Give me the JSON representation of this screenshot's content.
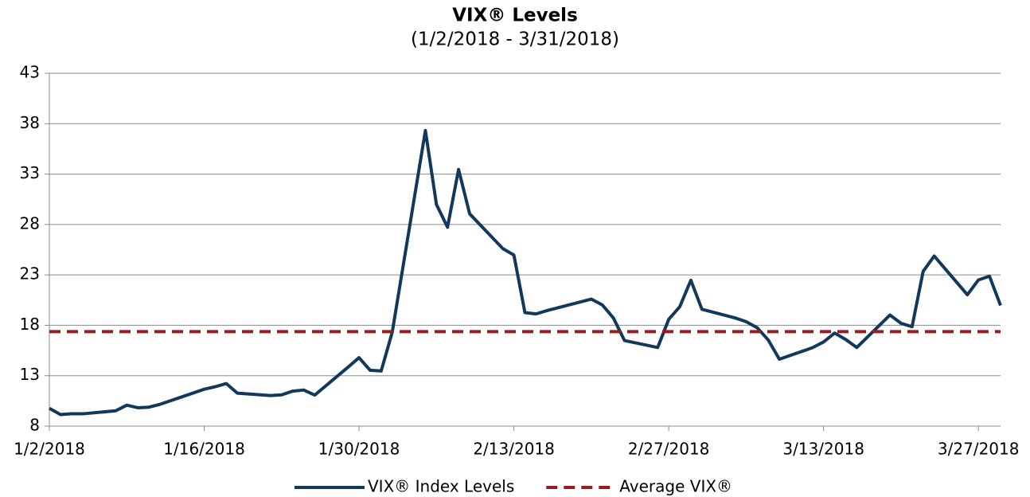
{
  "chart_data": {
    "type": "line",
    "title": "VIX® Levels",
    "subtitle": "(1/2/2018 - 3/31/2018)",
    "x": [
      "2018-01-02",
      "2018-01-03",
      "2018-01-04",
      "2018-01-05",
      "2018-01-08",
      "2018-01-09",
      "2018-01-10",
      "2018-01-11",
      "2018-01-12",
      "2018-01-16",
      "2018-01-17",
      "2018-01-18",
      "2018-01-19",
      "2018-01-22",
      "2018-01-23",
      "2018-01-24",
      "2018-01-25",
      "2018-01-26",
      "2018-01-29",
      "2018-01-30",
      "2018-01-31",
      "2018-02-01",
      "2018-02-02",
      "2018-02-05",
      "2018-02-06",
      "2018-02-07",
      "2018-02-08",
      "2018-02-09",
      "2018-02-12",
      "2018-02-13",
      "2018-02-14",
      "2018-02-15",
      "2018-02-16",
      "2018-02-20",
      "2018-02-21",
      "2018-02-22",
      "2018-02-23",
      "2018-02-26",
      "2018-02-27",
      "2018-02-28",
      "2018-03-01",
      "2018-03-02",
      "2018-03-05",
      "2018-03-06",
      "2018-03-07",
      "2018-03-08",
      "2018-03-09",
      "2018-03-12",
      "2018-03-13",
      "2018-03-14",
      "2018-03-15",
      "2018-03-16",
      "2018-03-19",
      "2018-03-20",
      "2018-03-21",
      "2018-03-22",
      "2018-03-23",
      "2018-03-26",
      "2018-03-27",
      "2018-03-28",
      "2018-03-29"
    ],
    "series": [
      {
        "name": "VIX® Index Levels",
        "color": "#12395b",
        "values": [
          9.77,
          9.15,
          9.22,
          9.22,
          9.52,
          10.08,
          9.82,
          9.88,
          10.16,
          11.66,
          11.91,
          12.22,
          11.27,
          11.03,
          11.1,
          11.47,
          11.58,
          11.08,
          13.84,
          14.79,
          13.54,
          13.47,
          17.31,
          37.32,
          29.98,
          27.73,
          33.46,
          29.06,
          25.61,
          24.97,
          19.26,
          19.13,
          19.46,
          20.6,
          20.02,
          18.72,
          16.49,
          15.8,
          18.59,
          19.85,
          22.47,
          19.59,
          18.73,
          18.36,
          17.76,
          16.54,
          14.64,
          15.78,
          16.35,
          17.23,
          16.59,
          15.8,
          19.02,
          18.2,
          17.86,
          23.34,
          24.87,
          21.03,
          22.5,
          22.87,
          19.97
        ]
      },
      {
        "name": "Average VIX®",
        "color": "#9b1c1c",
        "dashed": true,
        "value": 17.37
      }
    ],
    "xlim": [
      "2018-01-02",
      "2018-03-29"
    ],
    "xticks": [
      {
        "value": "2018-01-02",
        "label": "1/2/2018"
      },
      {
        "value": "2018-01-16",
        "label": "1/16/2018"
      },
      {
        "value": "2018-01-30",
        "label": "1/30/2018"
      },
      {
        "value": "2018-02-13",
        "label": "2/13/2018"
      },
      {
        "value": "2018-02-27",
        "label": "2/27/2018"
      },
      {
        "value": "2018-03-13",
        "label": "3/13/2018"
      },
      {
        "value": "2018-03-27",
        "label": "3/27/2018"
      }
    ],
    "ylim": [
      8,
      43
    ],
    "yticks": [
      8,
      13,
      18,
      23,
      28,
      33,
      38,
      43
    ],
    "grid": true,
    "legend": "bottom"
  }
}
